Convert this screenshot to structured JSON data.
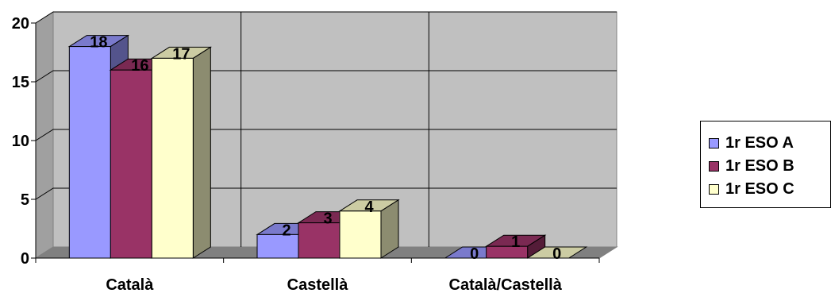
{
  "chart_data": {
    "type": "bar",
    "categories": [
      "Català",
      "Castellà",
      "Català/Castellà"
    ],
    "series": [
      {
        "name": "1r ESO A",
        "values": [
          18,
          2,
          0
        ],
        "color": "#9999ff"
      },
      {
        "name": "1r ESO B",
        "values": [
          16,
          3,
          1
        ],
        "color": "#993366"
      },
      {
        "name": "1r ESO C",
        "values": [
          17,
          4,
          0
        ],
        "color": "#ffffcc"
      }
    ],
    "title": "",
    "xlabel": "",
    "ylabel": "",
    "ylim": [
      0,
      20
    ],
    "yticks": [
      0,
      5,
      10,
      15,
      20
    ],
    "grid": true,
    "legend_position": "right",
    "plot_background": "#c0c0c0"
  }
}
